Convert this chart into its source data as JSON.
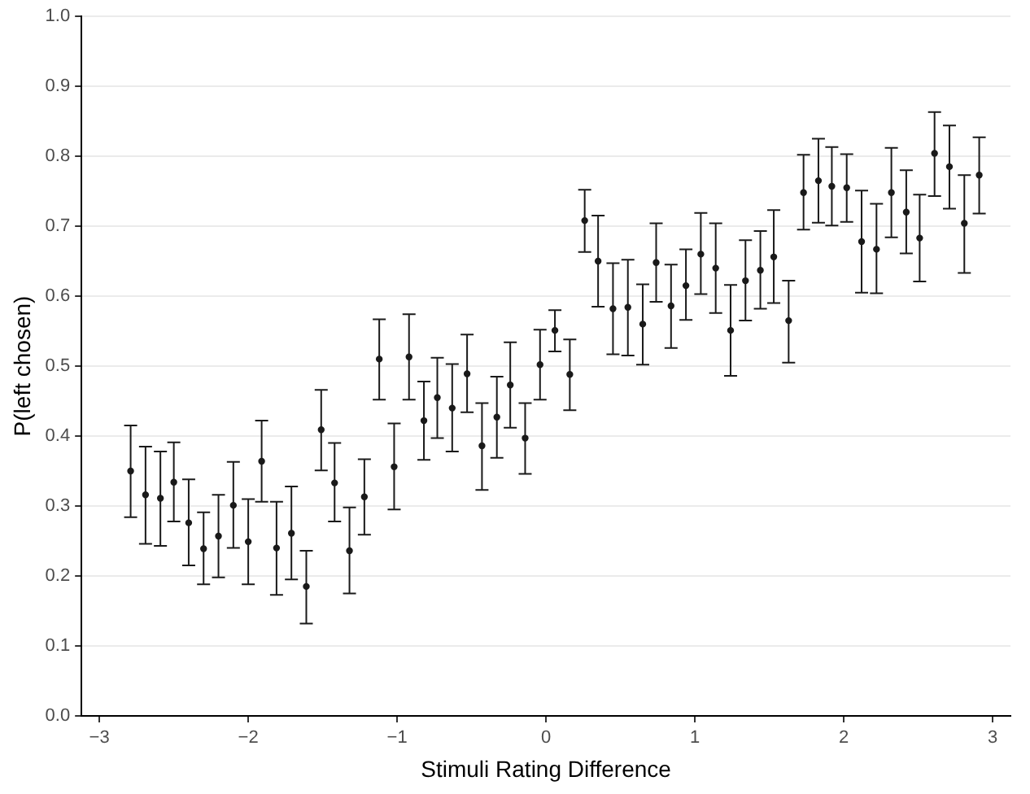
{
  "chart_data": {
    "type": "scatter",
    "xlabel": "Stimuli Rating Difference",
    "ylabel": "P(left chosen)",
    "xlim": [
      -3.12,
      3.12
    ],
    "xticks": [
      {
        "value": -3,
        "label": "−3"
      },
      {
        "value": -2,
        "label": "−2"
      },
      {
        "value": -1,
        "label": "−1"
      },
      0,
      1,
      2,
      3
    ],
    "ylim": [
      0,
      1
    ],
    "yticks": [
      {
        "value": 0,
        "label": "0.0"
      },
      0.1,
      0.2,
      0.3,
      0.4,
      0.5,
      0.6,
      0.7,
      0.8,
      0.9,
      {
        "value": 1,
        "label": "1.0"
      }
    ],
    "grid": "y",
    "marker": "circle",
    "legend": false,
    "series": [
      {
        "color": "#1a1a1a",
        "x": [
          -2.79,
          -2.69,
          -2.59,
          -2.5,
          -2.4,
          -2.3,
          -2.2,
          -2.1,
          -2.0,
          -1.91,
          -1.81,
          -1.71,
          -1.61,
          -1.51,
          -1.42,
          -1.32,
          -1.22,
          -1.12,
          -1.02,
          -0.92,
          -0.82,
          -0.73,
          -0.63,
          -0.53,
          -0.43,
          -0.33,
          -0.24,
          -0.14,
          -0.04,
          0.06,
          0.16,
          0.26,
          0.35,
          0.45,
          0.55,
          0.65,
          0.74,
          0.84,
          0.94,
          1.04,
          1.14,
          1.24,
          1.34,
          1.44,
          1.53,
          1.63,
          1.73,
          1.83,
          1.92,
          2.02,
          2.12,
          2.22,
          2.32,
          2.42,
          2.51,
          2.61,
          2.71,
          2.81,
          2.91
        ],
        "values": [
          0.35,
          0.316,
          0.311,
          0.334,
          0.276,
          0.239,
          0.257,
          0.301,
          0.249,
          0.364,
          0.24,
          0.261,
          0.185,
          0.409,
          0.333,
          0.236,
          0.313,
          0.51,
          0.356,
          0.513,
          0.422,
          0.455,
          0.44,
          0.489,
          0.386,
          0.427,
          0.473,
          0.397,
          0.502,
          0.551,
          0.488,
          0.708,
          0.65,
          0.582,
          0.584,
          0.56,
          0.648,
          0.586,
          0.615,
          0.66,
          0.64,
          0.551,
          0.622,
          0.637,
          0.656,
          0.565,
          0.748,
          0.765,
          0.757,
          0.755,
          0.678,
          0.667,
          0.748,
          0.72,
          0.683,
          0.804,
          0.785,
          0.704,
          0.773
        ],
        "errors": [
          [
            0.284,
            0.415
          ],
          [
            0.246,
            0.385
          ],
          [
            0.243,
            0.378
          ],
          [
            0.278,
            0.391
          ],
          [
            0.215,
            0.338
          ],
          [
            0.188,
            0.291
          ],
          [
            0.198,
            0.316
          ],
          [
            0.24,
            0.363
          ],
          [
            0.188,
            0.31
          ],
          [
            0.306,
            0.422
          ],
          [
            0.173,
            0.306
          ],
          [
            0.195,
            0.328
          ],
          [
            0.132,
            0.236
          ],
          [
            0.351,
            0.466
          ],
          [
            0.278,
            0.39
          ],
          [
            0.175,
            0.298
          ],
          [
            0.259,
            0.367
          ],
          [
            0.452,
            0.567
          ],
          [
            0.295,
            0.418
          ],
          [
            0.452,
            0.574
          ],
          [
            0.366,
            0.478
          ],
          [
            0.397,
            0.512
          ],
          [
            0.378,
            0.503
          ],
          [
            0.434,
            0.545
          ],
          [
            0.323,
            0.447
          ],
          [
            0.369,
            0.485
          ],
          [
            0.412,
            0.534
          ],
          [
            0.346,
            0.447
          ],
          [
            0.452,
            0.552
          ],
          [
            0.521,
            0.58
          ],
          [
            0.437,
            0.538
          ],
          [
            0.663,
            0.752
          ],
          [
            0.585,
            0.715
          ],
          [
            0.517,
            0.647
          ],
          [
            0.515,
            0.652
          ],
          [
            0.502,
            0.617
          ],
          [
            0.592,
            0.704
          ],
          [
            0.526,
            0.645
          ],
          [
            0.566,
            0.667
          ],
          [
            0.603,
            0.719
          ],
          [
            0.576,
            0.704
          ],
          [
            0.486,
            0.616
          ],
          [
            0.565,
            0.68
          ],
          [
            0.582,
            0.693
          ],
          [
            0.59,
            0.723
          ],
          [
            0.505,
            0.622
          ],
          [
            0.695,
            0.802
          ],
          [
            0.705,
            0.825
          ],
          [
            0.701,
            0.813
          ],
          [
            0.706,
            0.803
          ],
          [
            0.605,
            0.751
          ],
          [
            0.604,
            0.732
          ],
          [
            0.684,
            0.812
          ],
          [
            0.661,
            0.78
          ],
          [
            0.621,
            0.745
          ],
          [
            0.743,
            0.863
          ],
          [
            0.725,
            0.844
          ],
          [
            0.633,
            0.773
          ],
          [
            0.718,
            0.827
          ]
        ]
      }
    ]
  }
}
